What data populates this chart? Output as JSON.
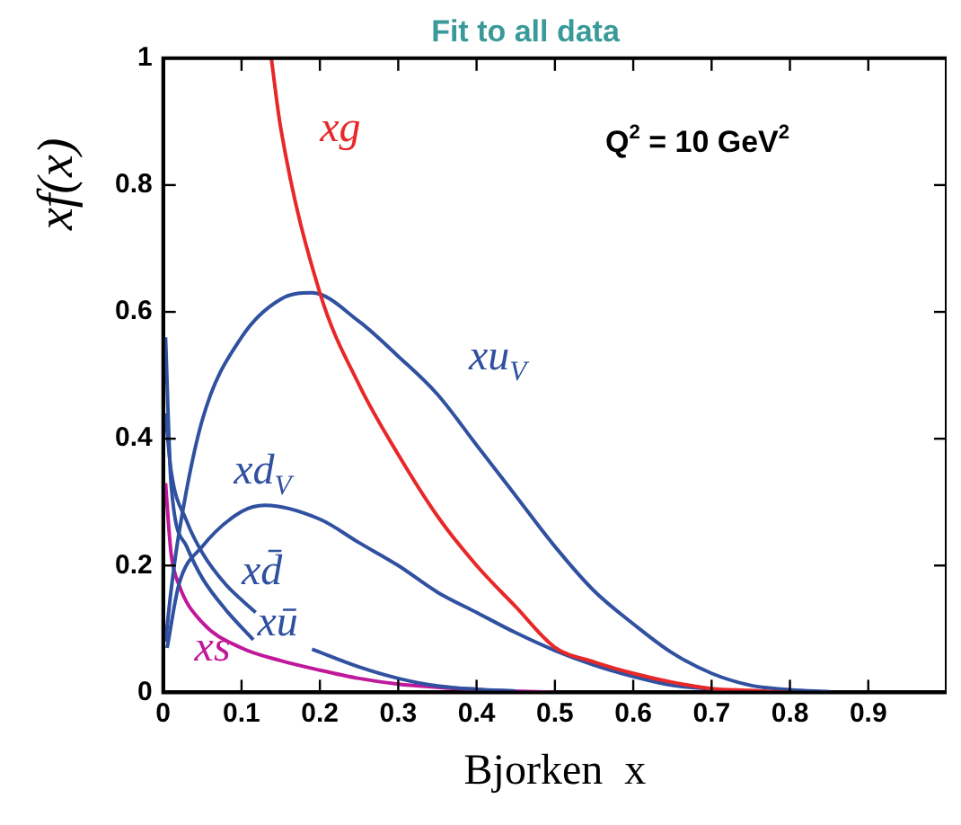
{
  "chart_data": {
    "type": "line",
    "title": "Fit to all data",
    "xlabel": "Bjorken  x",
    "ylabel": "xf(x)",
    "annotations": [
      "Q$^{2}$ = 10 GeV$^{2}$"
    ],
    "xlim": [
      0,
      1
    ],
    "ylim": [
      0,
      1
    ],
    "xticks": [
      0,
      0.1,
      0.2,
      0.3,
      0.4,
      0.5,
      0.6,
      0.7,
      0.8,
      0.9
    ],
    "yticks": [
      0,
      0.2,
      0.4,
      0.6,
      0.8,
      1
    ],
    "grid": false,
    "legend": false,
    "marker": "none",
    "line_style": "solid",
    "series": [
      {
        "name": "xg",
        "color": "#e82828",
        "x": [
          0.138,
          0.15,
          0.2,
          0.25,
          0.3,
          0.35,
          0.4,
          0.45,
          0.5,
          0.55,
          0.6,
          0.65,
          0.7,
          0.75,
          0.8
        ],
        "values": [
          1,
          0.89,
          0.63,
          0.485,
          0.375,
          0.278,
          0.2,
          0.135,
          0.071,
          0.048,
          0.03,
          0.016,
          0.006,
          0.003,
          0
        ]
      },
      {
        "name": "xu$_{V}$",
        "color": "#3050a0",
        "x": [
          0.003,
          0.01,
          0.02,
          0.05,
          0.1,
          0.15,
          0.19,
          0.25,
          0.3,
          0.35,
          0.4,
          0.45,
          0.5,
          0.55,
          0.6,
          0.65,
          0.7,
          0.75,
          0.8,
          0.85
        ],
        "values": [
          0.08,
          0.16,
          0.25,
          0.43,
          0.56,
          0.62,
          0.63,
          0.585,
          0.53,
          0.47,
          0.39,
          0.31,
          0.23,
          0.16,
          0.108,
          0.062,
          0.03,
          0.011,
          0.004,
          0.001
        ]
      },
      {
        "name": "xd$_{V}$",
        "color": "#3050a0",
        "x": [
          0.005,
          0.02,
          0.05,
          0.1,
          0.13,
          0.2,
          0.25,
          0.3,
          0.35,
          0.4,
          0.45,
          0.5,
          0.55,
          0.6,
          0.65,
          0.7,
          0.75
        ],
        "values": [
          0.07,
          0.17,
          0.23,
          0.285,
          0.295,
          0.273,
          0.236,
          0.2,
          0.158,
          0.126,
          0.094,
          0.066,
          0.043,
          0.025,
          0.011,
          0.005,
          0
        ]
      },
      {
        "name": "xd̄",
        "color": "#3050a0",
        "x": [
          0.003,
          0.01,
          0.03,
          0.05,
          0.08,
          0.118
        ],
        "values": [
          0.44,
          0.35,
          0.27,
          0.22,
          0.17,
          0.126
        ]
      },
      {
        "name": "xū",
        "color": "#3050a0",
        "x": [
          0.003,
          0.01,
          0.03,
          0.05,
          0.08,
          0.115,
          0.15,
          0.19,
          0.25,
          0.3,
          0.35,
          0.4,
          0.45
        ],
        "values": [
          0.56,
          0.33,
          0.23,
          0.18,
          0.13,
          0.083,
          null,
          0.068,
          0.04,
          0.022,
          0.01,
          0.005,
          0.002
        ]
      },
      {
        "name": "xs",
        "color": "#c0189a",
        "x": [
          0.003,
          0.01,
          0.02,
          0.05,
          0.1,
          0.15,
          0.2,
          0.25,
          0.3,
          0.35,
          0.4,
          0.5
        ],
        "values": [
          0.33,
          0.22,
          0.17,
          0.11,
          0.07,
          0.05,
          0.035,
          0.022,
          0.013,
          0.008,
          0.004,
          0
        ]
      }
    ]
  }
}
